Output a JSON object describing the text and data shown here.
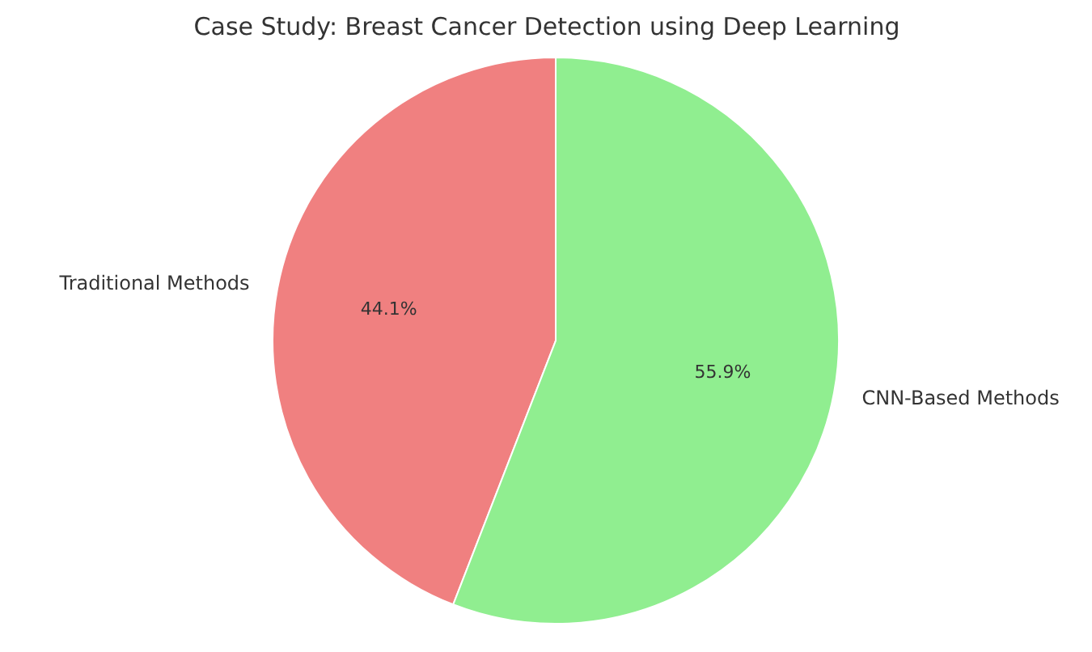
{
  "chart_data": {
    "type": "pie",
    "title": "Case Study: Breast Cancer Detection using Deep Learning",
    "categories": [
      "Traditional Methods",
      "CNN-Based Methods"
    ],
    "values": [
      44.1,
      55.9
    ],
    "colors": [
      "#f08080",
      "#90ee90"
    ],
    "value_labels": [
      "44.1%",
      "55.9%"
    ],
    "legend": false
  }
}
